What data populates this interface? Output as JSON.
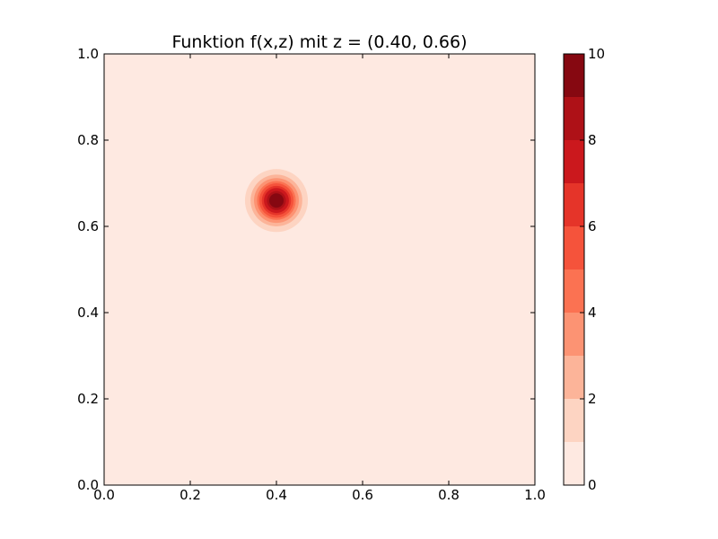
{
  "chart_data": {
    "type": "heatmap",
    "subtype": "filled-contour",
    "title": "Funktion f(x,z) mit z = (0.40, 0.66)",
    "xlabel": "",
    "ylabel": "",
    "xlim": [
      0.0,
      1.0
    ],
    "ylim": [
      0.0,
      1.0
    ],
    "x_ticks": [
      "0.0",
      "0.2",
      "0.4",
      "0.6",
      "0.8",
      "1.0"
    ],
    "y_ticks": [
      "0.0",
      "0.2",
      "0.4",
      "0.6",
      "0.8",
      "1.0"
    ],
    "grid": false,
    "peak": {
      "x": 0.4,
      "y": 0.66,
      "value": 10.0
    },
    "contour_levels": [
      0,
      1,
      2,
      3,
      4,
      5,
      6,
      7,
      8,
      9,
      10
    ],
    "level_colors": [
      "#fee9e1",
      "#fdd4c2",
      "#fcb499",
      "#fc9373",
      "#fb7252",
      "#f5533b",
      "#e53429",
      "#cb181d",
      "#ae1117",
      "#860811"
    ],
    "contour_radii": [
      0.073,
      0.06,
      0.052,
      0.045,
      0.04,
      0.034,
      0.029,
      0.022,
      0.015,
      0.0
    ],
    "colorbar": {
      "orientation": "vertical",
      "placement": "right",
      "range": [
        0,
        10
      ],
      "ticks": [
        "0",
        "2",
        "4",
        "6",
        "8",
        "10"
      ]
    }
  }
}
